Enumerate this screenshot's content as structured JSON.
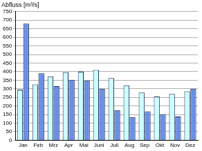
{
  "chart_data": {
    "type": "bar",
    "ylabel": "Abfluss [m³/s]",
    "categories": [
      "Jan",
      "Feb",
      "Mrz",
      "Apr",
      "Mai",
      "Juni",
      "Juli",
      "Aug",
      "Sep",
      "Okt",
      "Nov",
      "Dez"
    ],
    "series": [
      {
        "color": "#ccffff",
        "values": [
          295,
          325,
          372,
          397,
          400,
          410,
          362,
          320,
          278,
          255,
          270,
          285
        ]
      },
      {
        "color": "#6a8fe6",
        "values": [
          680,
          390,
          315,
          352,
          348,
          300,
          175,
          135,
          168,
          152,
          138,
          300
        ]
      }
    ],
    "ylim": [
      0,
      750
    ],
    "yticks": [
      0,
      50,
      100,
      150,
      200,
      250,
      300,
      350,
      400,
      450,
      500,
      550,
      600,
      650,
      700,
      750
    ],
    "grid": true
  }
}
